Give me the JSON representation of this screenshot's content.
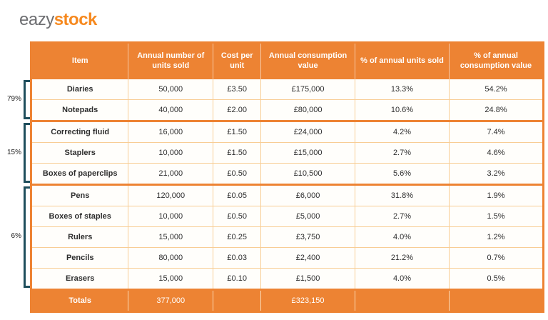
{
  "logo": {
    "prefix": "eazy",
    "suffix": "stock"
  },
  "colors": {
    "brand_orange": "#ED8333",
    "logo_orange": "#F6891F",
    "logo_gray": "#6D6E71",
    "grid_light_orange": "#F8CD94",
    "bracket_teal": "#1F4E5C",
    "body_text": "#2E2E2E",
    "header_text": "#FFFFFF"
  },
  "chart_data": {
    "type": "table",
    "columns": [
      "Item",
      "Annual number of units sold",
      "Cost per unit",
      "Annual consumption value",
      "% of annual units sold",
      "% of annual consumption value"
    ],
    "sections": [
      {
        "group_label": "79%",
        "rows": [
          [
            "Diaries",
            "50,000",
            "£3.50",
            "£175,000",
            "13.3%",
            "54.2%"
          ],
          [
            "Notepads",
            "40,000",
            "£2.00",
            "£80,000",
            "10.6%",
            "24.8%"
          ]
        ]
      },
      {
        "group_label": "15%",
        "rows": [
          [
            "Correcting fluid",
            "16,000",
            "£1.50",
            "£24,000",
            "4.2%",
            "7.4%"
          ],
          [
            "Staplers",
            "10,000",
            "£1.50",
            "£15,000",
            "2.7%",
            "4.6%"
          ],
          [
            "Boxes of paperclips",
            "21,000",
            "£0.50",
            "£10,500",
            "5.6%",
            "3.2%"
          ]
        ]
      },
      {
        "group_label": "6%",
        "rows": [
          [
            "Pens",
            "120,000",
            "£0.05",
            "£6,000",
            "31.8%",
            "1.9%"
          ],
          [
            "Boxes of staples",
            "10,000",
            "£0.50",
            "£5,000",
            "2.7%",
            "1.5%"
          ],
          [
            "Rulers",
            "15,000",
            "£0.25",
            "£3,750",
            "4.0%",
            "1.2%"
          ],
          [
            "Pencils",
            "80,000",
            "£0.03",
            "£2,400",
            "21.2%",
            "0.7%"
          ],
          [
            "Erasers",
            "15,000",
            "£0.10",
            "£1,500",
            "4.0%",
            "0.5%"
          ]
        ]
      }
    ],
    "totals": [
      "Totals",
      "377,000",
      "",
      "£323,150",
      "",
      ""
    ]
  }
}
